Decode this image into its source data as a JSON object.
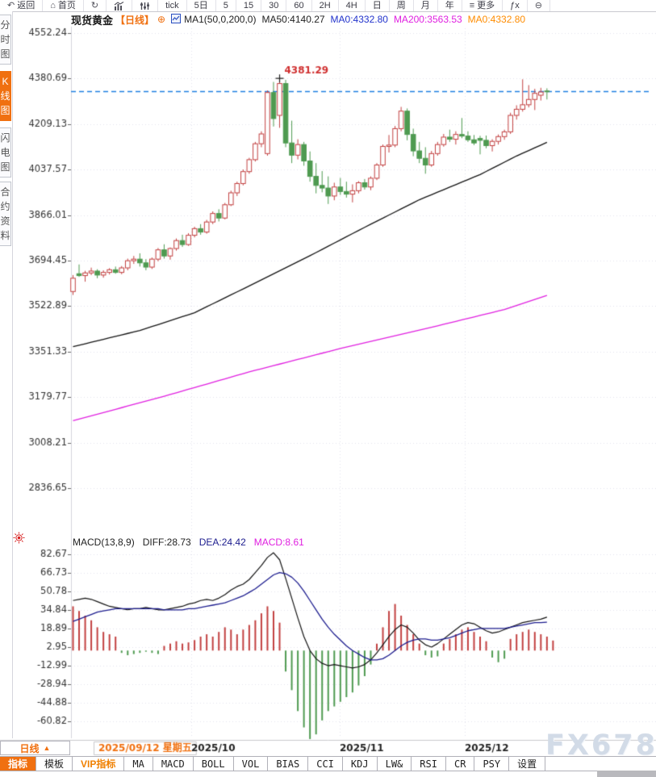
{
  "accent_color": "#f07010",
  "top_toolbar": {
    "items": [
      {
        "name": "back",
        "glyph": "↶",
        "label": "返回"
      },
      {
        "name": "home",
        "glyph": "⌂",
        "label": "首页"
      },
      {
        "name": "refresh",
        "glyph": "↻",
        "icon": "refresh-icon"
      },
      {
        "name": "chart-type",
        "svg": "bars",
        "icon": "bar-chart-icon"
      },
      {
        "name": "indicator-sliders",
        "svg": "sliders",
        "icon": "sliders-icon"
      },
      {
        "name": "tick",
        "label": "tick"
      },
      {
        "name": "5d",
        "label": "5日"
      },
      {
        "name": "5m",
        "label": "5"
      },
      {
        "name": "15m",
        "label": "15"
      },
      {
        "name": "30m",
        "label": "30"
      },
      {
        "name": "60m",
        "label": "60"
      },
      {
        "name": "2h",
        "label": "2H"
      },
      {
        "name": "4h",
        "label": "4H"
      },
      {
        "name": "day",
        "label": "日"
      },
      {
        "name": "week",
        "label": "周"
      },
      {
        "name": "month",
        "label": "月"
      },
      {
        "name": "year",
        "label": "年"
      },
      {
        "name": "more",
        "glyph": "≡",
        "label": "更多"
      },
      {
        "name": "fx",
        "label": "ƒx"
      },
      {
        "name": "zoom-out",
        "glyph": "⊖",
        "icon": "zoom-out-icon"
      }
    ]
  },
  "sidebar": {
    "tabs": [
      {
        "label": "分时图",
        "active": false
      },
      {
        "label": "K线图",
        "active": true
      },
      {
        "label": "闪电图",
        "active": false
      },
      {
        "label": "合约资料",
        "active": false
      }
    ]
  },
  "header": {
    "symbol": "现货黄金",
    "period_tag": "【日线】",
    "add_icon": "⊕",
    "ma_settings": "MA1(50,0,200,0)",
    "ma50": "MA50:4140.27",
    "ma0_blue": "MA0:4332.80",
    "ma200": "MA200:3563.53",
    "ma0_orange": "MA0:4332.80"
  },
  "macd_header": {
    "formula": "MACD(13,8,9)",
    "diff": "DIFF:28.73",
    "dea": "DEA:24.42",
    "macd": "MACD:8.61"
  },
  "period_box": {
    "label": "日线",
    "arrow": "▲"
  },
  "bottom_toolbar": {
    "tabs": [
      {
        "label": "指标",
        "active": true
      },
      {
        "label": "模板"
      },
      {
        "label": "VIP指标",
        "vip": true
      },
      {
        "label": "MA"
      },
      {
        "label": "MACD"
      },
      {
        "label": "BOLL"
      },
      {
        "label": "VOL"
      },
      {
        "label": "BIAS"
      },
      {
        "label": "CCI"
      },
      {
        "label": "KDJ"
      },
      {
        "label": "LW&"
      },
      {
        "label": "RSI"
      },
      {
        "label": "CR"
      },
      {
        "label": "PSY"
      },
      {
        "label": "设置"
      }
    ]
  },
  "watermark": {
    "text": "FX678"
  },
  "chart_data": {
    "type": "candlestick",
    "title": "现货黄金 日线",
    "price_axis_ticks": [
      4552.24,
      4380.69,
      4209.13,
      4037.57,
      3866.01,
      3694.45,
      3522.89,
      3351.33,
      3179.77,
      3008.21,
      2836.65
    ],
    "last_price_line": {
      "value": 4332.8,
      "style": "dashed"
    },
    "price_annotation": {
      "label": "4381.29",
      "value": 4381.29,
      "candle_index": 34
    },
    "x_ticks": [
      {
        "label": "2025/09/12 星期五",
        "x": 122,
        "highlight": true
      },
      {
        "label": "2025/10",
        "x": 237
      },
      {
        "label": "2025/11",
        "x": 421
      },
      {
        "label": "2025/12",
        "x": 576
      }
    ],
    "candles": [
      [
        3578,
        3640,
        3565,
        3628
      ],
      [
        3645,
        3680,
        3633,
        3638
      ],
      [
        3638,
        3656,
        3615,
        3648
      ],
      [
        3648,
        3668,
        3640,
        3655
      ],
      [
        3655,
        3662,
        3628,
        3640
      ],
      [
        3640,
        3658,
        3630,
        3650
      ],
      [
        3650,
        3666,
        3642,
        3660
      ],
      [
        3660,
        3672,
        3645,
        3650
      ],
      [
        3650,
        3674,
        3643,
        3667
      ],
      [
        3667,
        3702,
        3658,
        3694
      ],
      [
        3694,
        3712,
        3682,
        3700
      ],
      [
        3700,
        3722,
        3672,
        3686
      ],
      [
        3686,
        3700,
        3658,
        3670
      ],
      [
        3670,
        3706,
        3663,
        3700
      ],
      [
        3700,
        3742,
        3692,
        3735
      ],
      [
        3735,
        3756,
        3702,
        3712
      ],
      [
        3712,
        3744,
        3698,
        3740
      ],
      [
        3740,
        3778,
        3732,
        3770
      ],
      [
        3770,
        3792,
        3746,
        3755
      ],
      [
        3755,
        3798,
        3750,
        3790
      ],
      [
        3790,
        3822,
        3782,
        3815
      ],
      [
        3815,
        3832,
        3792,
        3802
      ],
      [
        3802,
        3848,
        3796,
        3840
      ],
      [
        3840,
        3880,
        3832,
        3872
      ],
      [
        3872,
        3888,
        3842,
        3855
      ],
      [
        3855,
        3912,
        3850,
        3905
      ],
      [
        3905,
        3958,
        3900,
        3950
      ],
      [
        3950,
        3992,
        3938,
        3985
      ],
      [
        3985,
        4038,
        3978,
        4030
      ],
      [
        4030,
        4082,
        4022,
        4075
      ],
      [
        4075,
        4142,
        4068,
        4135
      ],
      [
        4135,
        4182,
        4122,
        4172
      ],
      [
        4098,
        4336,
        4090,
        4328
      ],
      [
        4328,
        4368,
        4200,
        4230
      ],
      [
        4242,
        4381.29,
        4195,
        4362
      ],
      [
        4362,
        4376,
        4122,
        4138
      ],
      [
        4138,
        4222,
        4062,
        4092
      ],
      [
        4092,
        4152,
        4076,
        4132
      ],
      [
        4132,
        4142,
        4052,
        4070
      ],
      [
        4070,
        4106,
        3992,
        4012
      ],
      [
        4012,
        4062,
        3948,
        3978
      ],
      [
        3978,
        4032,
        3952,
        3968
      ],
      [
        3968,
        4012,
        3908,
        3938
      ],
      [
        3938,
        3988,
        3922,
        3972
      ],
      [
        3972,
        4006,
        3942,
        3955
      ],
      [
        3955,
        3992,
        3932,
        3945
      ],
      [
        3945,
        3982,
        3914,
        3958
      ],
      [
        3958,
        3994,
        3948,
        3988
      ],
      [
        3988,
        4002,
        3962,
        3972
      ],
      [
        3972,
        4012,
        3960,
        4005
      ],
      [
        4005,
        4062,
        3998,
        4055
      ],
      [
        4055,
        4132,
        4048,
        4125
      ],
      [
        4125,
        4168,
        4102,
        4130
      ],
      [
        4130,
        4202,
        4122,
        4192
      ],
      [
        4192,
        4274,
        4182,
        4258
      ],
      [
        4258,
        4268,
        4148,
        4170
      ],
      [
        4170,
        4192,
        4088,
        4108
      ],
      [
        4108,
        4142,
        4062,
        4080
      ],
      [
        4080,
        4122,
        4022,
        4055
      ],
      [
        4055,
        4108,
        4048,
        4098
      ],
      [
        4098,
        4142,
        4090,
        4132
      ],
      [
        4132,
        4172,
        4124,
        4160
      ],
      [
        4160,
        4188,
        4142,
        4152
      ],
      [
        4152,
        4182,
        4132,
        4170
      ],
      [
        4170,
        4232,
        4156,
        4164
      ],
      [
        4164,
        4182,
        4142,
        4150
      ],
      [
        4150,
        4168,
        4130,
        4138
      ],
      [
        4155,
        4165,
        4095,
        4148
      ],
      [
        4148,
        4166,
        4118,
        4128
      ],
      [
        4128,
        4152,
        4106,
        4144
      ],
      [
        4144,
        4170,
        4132,
        4162
      ],
      [
        4162,
        4188,
        4150,
        4180
      ],
      [
        4180,
        4252,
        4172,
        4242
      ],
      [
        4242,
        4280,
        4226,
        4265
      ],
      [
        4265,
        4378,
        4256,
        4282
      ],
      [
        4282,
        4356,
        4272,
        4302
      ],
      [
        4302,
        4342,
        4262,
        4325
      ],
      [
        4318,
        4346,
        4298,
        4330
      ],
      [
        4334,
        4344,
        4302,
        4332.8
      ]
    ],
    "ma50_points": [
      [
        0,
        3370
      ],
      [
        11,
        3431
      ],
      [
        20,
        3498
      ],
      [
        29,
        3599
      ],
      [
        39,
        3713
      ],
      [
        48,
        3820
      ],
      [
        57,
        3924
      ],
      [
        67,
        4019
      ],
      [
        73,
        4089
      ],
      [
        78,
        4140.27
      ]
    ],
    "ma200_points": [
      [
        0,
        3091
      ],
      [
        15,
        3183
      ],
      [
        29,
        3275
      ],
      [
        44,
        3363
      ],
      [
        59,
        3443
      ],
      [
        71,
        3510
      ],
      [
        78,
        3563.53
      ]
    ],
    "macd": {
      "ticks": [
        82.67,
        66.73,
        50.78,
        34.84,
        18.89,
        2.95,
        -12.99,
        -28.94,
        -44.88,
        -60.82
      ],
      "diff": [
        43,
        44,
        45,
        44,
        42,
        40,
        38,
        37,
        36,
        35,
        36,
        36,
        37,
        36,
        35,
        35,
        36,
        37,
        38,
        40,
        41,
        43,
        44,
        43,
        45,
        48,
        52,
        55,
        57,
        61,
        67,
        73,
        80,
        84,
        78,
        62,
        45,
        28,
        12,
        0,
        -7,
        -11,
        -13,
        -12,
        -13,
        -14,
        -15,
        -14,
        -12,
        -8,
        -2,
        5,
        12,
        18,
        22,
        20,
        15,
        9,
        5,
        3,
        6,
        10,
        14,
        18,
        22,
        24,
        23,
        20,
        17,
        15,
        16,
        18,
        20,
        22,
        24,
        25,
        26,
        27,
        28.73
      ],
      "dea": [
        25,
        27,
        29,
        31,
        33,
        34,
        35,
        36,
        36,
        36,
        36,
        36,
        36,
        36,
        36,
        35,
        35,
        35,
        35,
        36,
        36,
        37,
        38,
        39,
        40,
        41,
        43,
        45,
        47,
        50,
        53,
        57,
        61,
        65,
        67,
        66,
        63,
        58,
        51,
        43,
        35,
        27,
        20,
        14,
        9,
        4,
        0,
        -3,
        -6,
        -8,
        -8,
        -7,
        -4,
        0,
        4,
        7,
        9,
        10,
        10,
        9,
        9,
        10,
        11,
        13,
        15,
        17,
        18,
        19,
        19,
        19,
        19,
        19,
        20,
        21,
        22,
        23,
        24,
        24,
        24.42
      ],
      "hist": [
        38,
        34,
        30,
        26,
        20,
        16,
        14,
        12,
        -2,
        -4,
        -3,
        -2,
        -1,
        -2,
        -3,
        4,
        6,
        8,
        6,
        7,
        9,
        12,
        14,
        12,
        16,
        20,
        18,
        14,
        18,
        22,
        26,
        32,
        38,
        34,
        24,
        -18,
        -34,
        -52,
        -66,
        -76,
        -72,
        -60,
        -52,
        -48,
        -44,
        -40,
        -36,
        -30,
        -22,
        -12,
        6,
        20,
        34,
        40,
        30,
        22,
        14,
        6,
        -4,
        -6,
        -5,
        6,
        10,
        14,
        18,
        20,
        16,
        12,
        8,
        -6,
        -10,
        -7,
        10,
        14,
        16,
        18,
        16,
        14,
        12,
        8.61
      ]
    },
    "colors": {
      "up": "#c24040",
      "down": "#4e9a50",
      "ma50": "#141414",
      "ma200": "#e020e0",
      "diff": "#141414",
      "dea": "#1c1c8e",
      "dashed_line": "#1f7fe0",
      "grid": "#e3e3eb",
      "axis_text": "#333333",
      "annotation": "#d03030"
    }
  }
}
